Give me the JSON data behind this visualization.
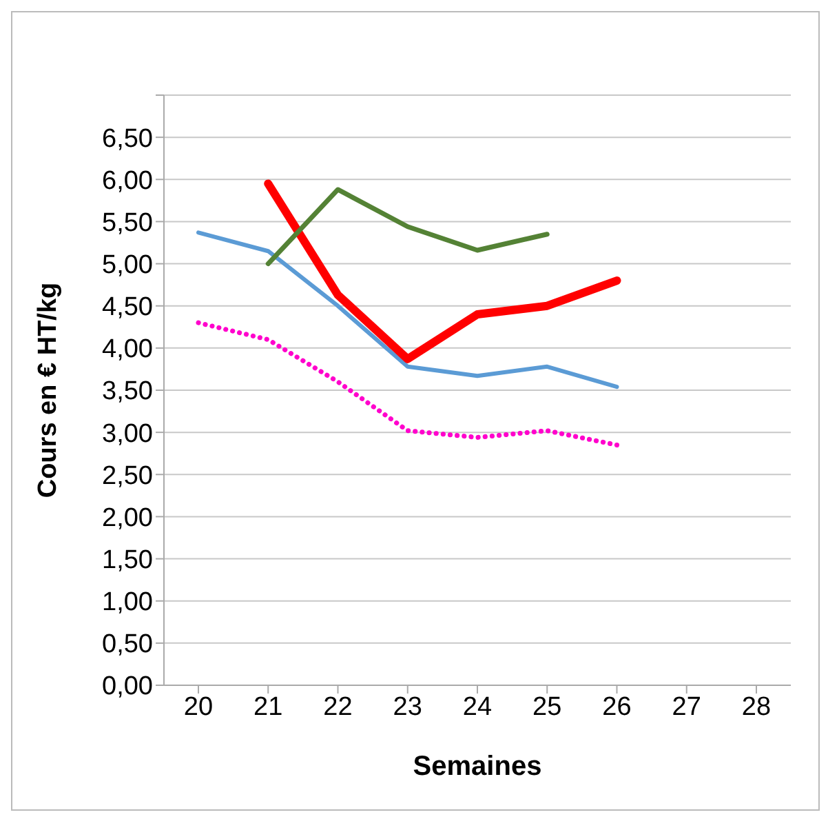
{
  "chart_data": {
    "type": "line",
    "xlabel": "Semaines",
    "ylabel": "Cours en € HT/kg",
    "categories": [
      "20",
      "21",
      "22",
      "23",
      "24",
      "25",
      "26",
      "27",
      "28"
    ],
    "series": [
      {
        "color": "#5b9bd5",
        "values": [
          5.37,
          5.15,
          4.5,
          3.78,
          3.67,
          3.78,
          3.54,
          null,
          null
        ]
      },
      {
        "color": "#ff0000",
        "values": [
          null,
          5.95,
          4.63,
          3.87,
          4.4,
          4.5,
          4.8,
          null,
          null
        ]
      },
      {
        "color": "#548235",
        "values": [
          null,
          5.0,
          5.88,
          5.44,
          5.16,
          5.35,
          null,
          null,
          null
        ]
      },
      {
        "color": "#ff00cc",
        "line_style": "dotted",
        "values": [
          4.3,
          4.1,
          3.6,
          3.02,
          2.94,
          3.02,
          2.85,
          null,
          null
        ]
      }
    ],
    "ylim": [
      0,
      7
    ],
    "yticks": [
      {
        "value": 0,
        "label": "0,00"
      },
      {
        "value": 0.5,
        "label": "0,50"
      },
      {
        "value": 1,
        "label": "1,00"
      },
      {
        "value": 1.5,
        "label": "1,50"
      },
      {
        "value": 2,
        "label": "2,00"
      },
      {
        "value": 2.5,
        "label": "2,50"
      },
      {
        "value": 3,
        "label": "3,00"
      },
      {
        "value": 3.5,
        "label": "3,50"
      },
      {
        "value": 4,
        "label": "4,00"
      },
      {
        "value": 4.5,
        "label": "4,50"
      },
      {
        "value": 5,
        "label": "5,00"
      },
      {
        "value": 5.5,
        "label": "5,50"
      },
      {
        "value": 6,
        "label": "6,00"
      },
      {
        "value": 6.5,
        "label": "6,50"
      },
      {
        "value": 7,
        "label": null
      }
    ],
    "grid": "y",
    "legend": false,
    "marker": "none",
    "line_style": "solid"
  }
}
